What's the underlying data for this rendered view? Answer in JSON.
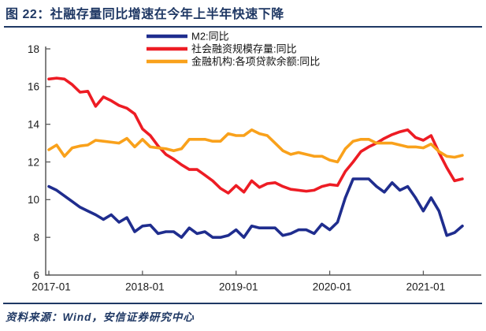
{
  "header": {
    "title": "图 22：社融存量同比增速在今年上半年快速下降"
  },
  "footer": {
    "source": "资料来源：Wind，安信证券研究中心"
  },
  "colors": {
    "accent_navy": "#1F3864",
    "axis_line": "#595959",
    "tick_text": "#1a1a1a",
    "m2_blue": "#1F2D8E",
    "tsf_red": "#ED1C24",
    "loan_orange": "#F9A11B"
  },
  "chart_data": {
    "type": "line",
    "title": "图 22：社融存量同比增速在今年上半年快速下降",
    "xlabel": "",
    "ylabel": "",
    "ylim": [
      6,
      18
    ],
    "y_ticks": [
      6,
      8,
      10,
      12,
      14,
      16,
      18
    ],
    "x_tick_labels": [
      "2017-01",
      "2018-01",
      "2019-01",
      "2020-01",
      "2021-01"
    ],
    "x_interval": "monthly",
    "x_start": "2017-01",
    "x_end": "2021-06",
    "grid": false,
    "legend_position": "top-center",
    "series": [
      {
        "name": "M2:同比",
        "color": "#1F2D8E",
        "values": [
          10.7,
          10.5,
          10.2,
          9.9,
          9.6,
          9.4,
          9.2,
          8.95,
          9.2,
          8.8,
          9.05,
          8.3,
          8.6,
          8.65,
          8.2,
          8.3,
          8.3,
          8.0,
          8.5,
          8.2,
          8.3,
          8.0,
          8.0,
          8.1,
          8.4,
          8.0,
          8.6,
          8.5,
          8.5,
          8.5,
          8.1,
          8.2,
          8.4,
          8.4,
          8.2,
          8.7,
          8.4,
          8.8,
          10.1,
          11.1,
          11.1,
          11.1,
          10.7,
          10.4,
          10.9,
          10.5,
          10.7,
          10.1,
          9.4,
          10.1,
          9.4,
          8.1,
          8.25,
          8.6
        ]
      },
      {
        "name": "社会融资规模存量:同比",
        "color": "#ED1C24",
        "values": [
          16.4,
          16.45,
          16.4,
          16.1,
          15.7,
          15.75,
          14.95,
          15.45,
          15.25,
          15.0,
          14.85,
          14.55,
          13.75,
          13.4,
          12.85,
          12.4,
          12.15,
          11.85,
          11.6,
          11.6,
          11.3,
          11.0,
          10.6,
          10.35,
          10.75,
          10.4,
          11.0,
          10.65,
          10.85,
          10.9,
          10.7,
          10.55,
          10.5,
          10.45,
          10.5,
          10.7,
          10.8,
          10.75,
          11.5,
          12.0,
          12.55,
          12.8,
          13.0,
          13.25,
          13.45,
          13.6,
          13.7,
          13.3,
          13.15,
          13.4,
          12.5,
          11.7,
          11.0,
          11.1
        ]
      },
      {
        "name": "金融机构:各项贷款余额:同比",
        "color": "#F9A11B",
        "values": [
          12.65,
          12.9,
          12.3,
          12.75,
          12.85,
          12.9,
          13.15,
          13.1,
          13.05,
          13.0,
          13.25,
          12.8,
          13.2,
          12.8,
          12.75,
          12.7,
          12.6,
          12.7,
          13.2,
          13.2,
          13.2,
          13.1,
          13.1,
          13.5,
          13.4,
          13.4,
          13.7,
          13.5,
          13.4,
          13.0,
          12.6,
          12.4,
          12.5,
          12.4,
          12.3,
          12.3,
          12.1,
          12.0,
          12.7,
          13.1,
          13.2,
          13.2,
          13.0,
          13.0,
          13.0,
          12.9,
          12.8,
          12.8,
          12.75,
          12.95,
          12.55,
          12.3,
          12.25,
          12.35
        ]
      }
    ]
  }
}
